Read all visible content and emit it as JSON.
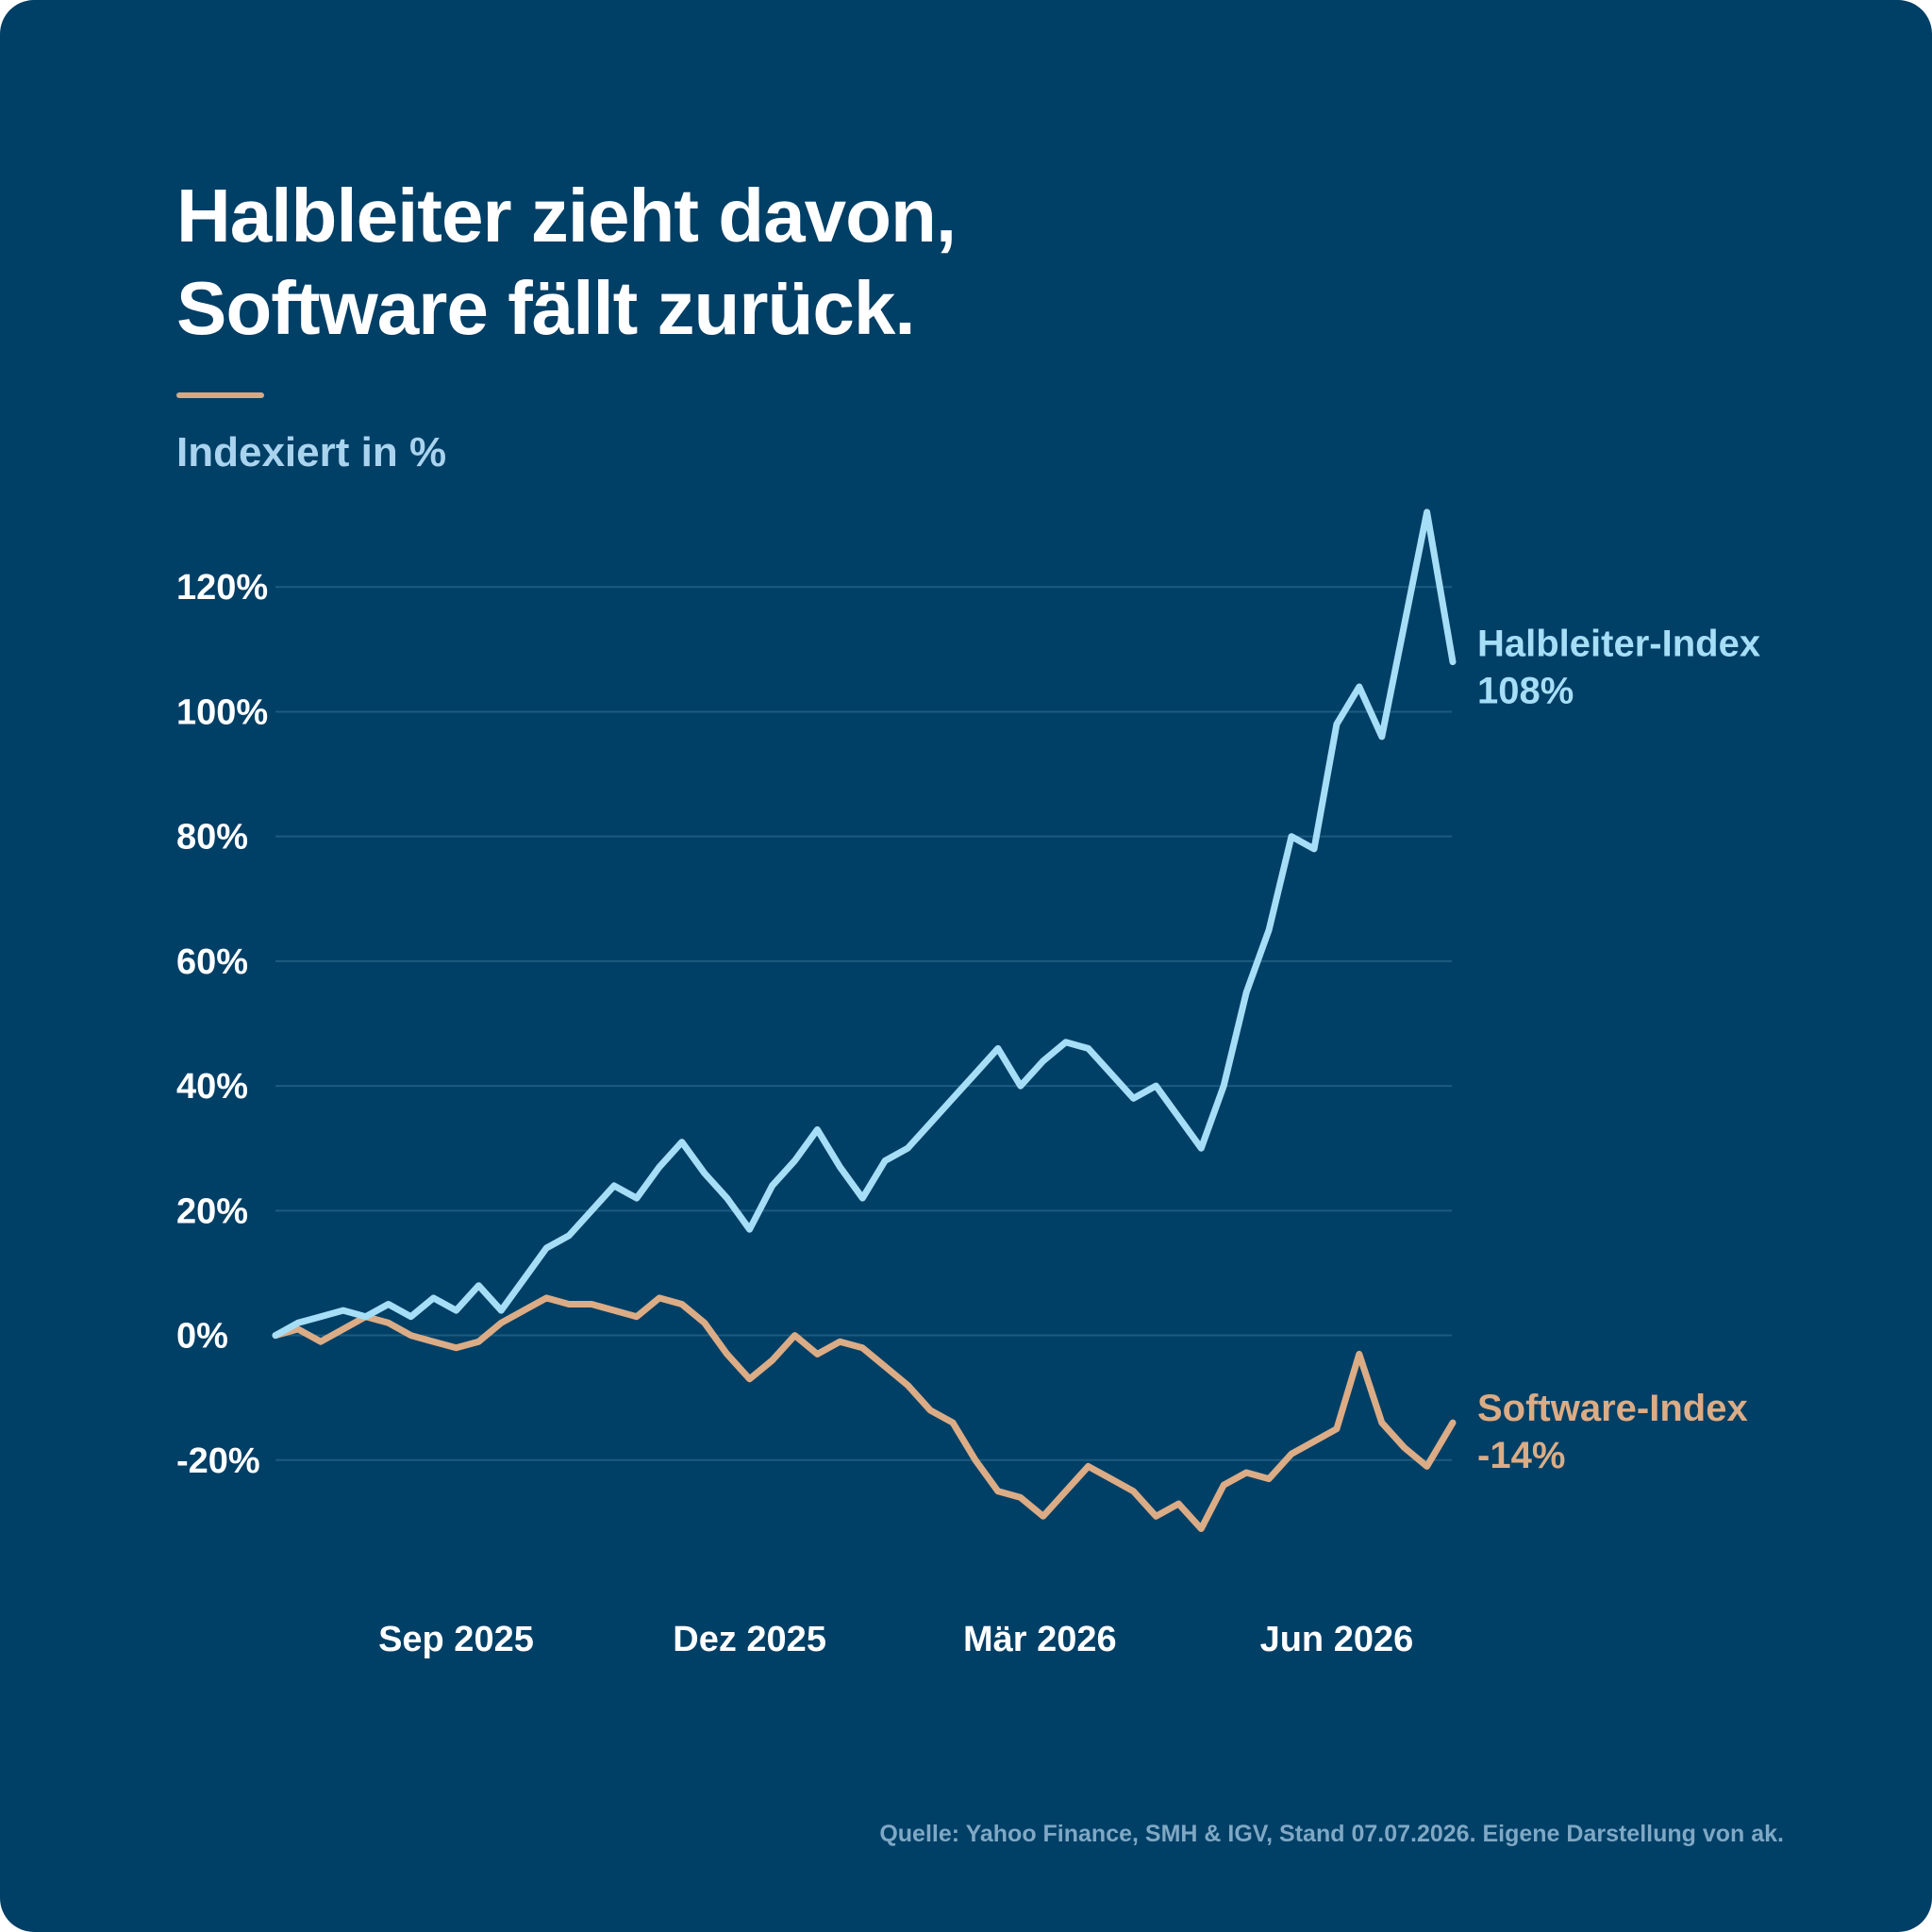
{
  "title_lines": [
    "Halbleiter zieht davon,",
    "Software fällt zurück."
  ],
  "subtitle": "Indexiert in %",
  "source": "Quelle: Yahoo Finance, SMH & IGV, Stand 07.07.2026. Eigene Darstellung von ak.",
  "colors": {
    "background": "#003f66",
    "accent": "#d9a87f",
    "semiconductor": "#a6def7",
    "software": "#dbac85",
    "grid": "#1d5c80"
  },
  "chart_data": {
    "type": "line",
    "ylim": [
      -40,
      140
    ],
    "x_range": [
      "2025-07-07",
      "2026-07-07"
    ],
    "y_ticks": [
      {
        "value": 120,
        "label": "120%"
      },
      {
        "value": 100,
        "label": "100%"
      },
      {
        "value": 80,
        "label": "80%"
      },
      {
        "value": 60,
        "label": "60%"
      },
      {
        "value": 40,
        "label": "40%"
      },
      {
        "value": 20,
        "label": "20%"
      },
      {
        "value": 0,
        "label": "0%"
      },
      {
        "value": -20,
        "label": "-20%"
      }
    ],
    "x_ticks": [
      {
        "date": "2025-09-01",
        "label": "Sep 2025"
      },
      {
        "date": "2025-12-01",
        "label": "Dez 2025"
      },
      {
        "date": "2026-03-01",
        "label": "Mär 2026"
      },
      {
        "date": "2026-06-01",
        "label": "Jun 2026"
      }
    ],
    "grid": true,
    "series": [
      {
        "name": "Halbleiter-Index",
        "end_label": "108%",
        "color": "#a6def7",
        "points": [
          [
            "2025-07-07",
            0
          ],
          [
            "2025-07-14",
            2
          ],
          [
            "2025-07-21",
            3
          ],
          [
            "2025-07-28",
            4
          ],
          [
            "2025-08-04",
            3
          ],
          [
            "2025-08-11",
            5
          ],
          [
            "2025-08-18",
            3
          ],
          [
            "2025-08-25",
            6
          ],
          [
            "2025-09-01",
            4
          ],
          [
            "2025-09-08",
            8
          ],
          [
            "2025-09-15",
            4
          ],
          [
            "2025-09-22",
            9
          ],
          [
            "2025-09-29",
            14
          ],
          [
            "2025-10-06",
            16
          ],
          [
            "2025-10-13",
            20
          ],
          [
            "2025-10-20",
            24
          ],
          [
            "2025-10-27",
            22
          ],
          [
            "2025-11-03",
            27
          ],
          [
            "2025-11-10",
            31
          ],
          [
            "2025-11-17",
            26
          ],
          [
            "2025-11-24",
            22
          ],
          [
            "2025-12-01",
            17
          ],
          [
            "2025-12-08",
            24
          ],
          [
            "2025-12-15",
            28
          ],
          [
            "2025-12-22",
            33
          ],
          [
            "2025-12-29",
            27
          ],
          [
            "2026-01-05",
            22
          ],
          [
            "2026-01-12",
            28
          ],
          [
            "2026-01-19",
            30
          ],
          [
            "2026-01-26",
            34
          ],
          [
            "2026-02-02",
            38
          ],
          [
            "2026-02-09",
            42
          ],
          [
            "2026-02-16",
            46
          ],
          [
            "2026-02-23",
            40
          ],
          [
            "2026-03-02",
            44
          ],
          [
            "2026-03-09",
            47
          ],
          [
            "2026-03-16",
            46
          ],
          [
            "2026-03-23",
            42
          ],
          [
            "2026-03-30",
            38
          ],
          [
            "2026-04-06",
            40
          ],
          [
            "2026-04-13",
            35
          ],
          [
            "2026-04-20",
            30
          ],
          [
            "2026-04-27",
            40
          ],
          [
            "2026-05-04",
            55
          ],
          [
            "2026-05-11",
            65
          ],
          [
            "2026-05-18",
            80
          ],
          [
            "2026-05-25",
            78
          ],
          [
            "2026-06-01",
            98
          ],
          [
            "2026-06-08",
            104
          ],
          [
            "2026-06-15",
            96
          ],
          [
            "2026-06-22",
            114
          ],
          [
            "2026-06-29",
            132
          ],
          [
            "2026-07-07",
            108
          ]
        ]
      },
      {
        "name": "Software-Index",
        "end_label": "-14%",
        "color": "#dbac85",
        "points": [
          [
            "2025-07-07",
            0
          ],
          [
            "2025-07-14",
            1
          ],
          [
            "2025-07-21",
            -1
          ],
          [
            "2025-07-28",
            1
          ],
          [
            "2025-08-04",
            3
          ],
          [
            "2025-08-11",
            2
          ],
          [
            "2025-08-18",
            0
          ],
          [
            "2025-08-25",
            -1
          ],
          [
            "2025-09-01",
            -2
          ],
          [
            "2025-09-08",
            -1
          ],
          [
            "2025-09-15",
            2
          ],
          [
            "2025-09-22",
            4
          ],
          [
            "2025-09-29",
            6
          ],
          [
            "2025-10-06",
            5
          ],
          [
            "2025-10-13",
            5
          ],
          [
            "2025-10-20",
            4
          ],
          [
            "2025-10-27",
            3
          ],
          [
            "2025-11-03",
            6
          ],
          [
            "2025-11-10",
            5
          ],
          [
            "2025-11-17",
            2
          ],
          [
            "2025-11-24",
            -3
          ],
          [
            "2025-12-01",
            -7
          ],
          [
            "2025-12-08",
            -4
          ],
          [
            "2025-12-15",
            0
          ],
          [
            "2025-12-22",
            -3
          ],
          [
            "2025-12-29",
            -1
          ],
          [
            "2026-01-05",
            -2
          ],
          [
            "2026-01-12",
            -5
          ],
          [
            "2026-01-19",
            -8
          ],
          [
            "2026-01-26",
            -12
          ],
          [
            "2026-02-02",
            -14
          ],
          [
            "2026-02-09",
            -20
          ],
          [
            "2026-02-16",
            -25
          ],
          [
            "2026-02-23",
            -26
          ],
          [
            "2026-03-02",
            -29
          ],
          [
            "2026-03-09",
            -25
          ],
          [
            "2026-03-16",
            -21
          ],
          [
            "2026-03-23",
            -23
          ],
          [
            "2026-03-30",
            -25
          ],
          [
            "2026-04-06",
            -29
          ],
          [
            "2026-04-13",
            -27
          ],
          [
            "2026-04-20",
            -31
          ],
          [
            "2026-04-27",
            -24
          ],
          [
            "2026-05-04",
            -22
          ],
          [
            "2026-05-11",
            -23
          ],
          [
            "2026-05-18",
            -19
          ],
          [
            "2026-05-25",
            -17
          ],
          [
            "2026-06-01",
            -15
          ],
          [
            "2026-06-08",
            -3
          ],
          [
            "2026-06-15",
            -14
          ],
          [
            "2026-06-22",
            -18
          ],
          [
            "2026-06-29",
            -21
          ],
          [
            "2026-07-07",
            -14
          ]
        ]
      }
    ]
  }
}
